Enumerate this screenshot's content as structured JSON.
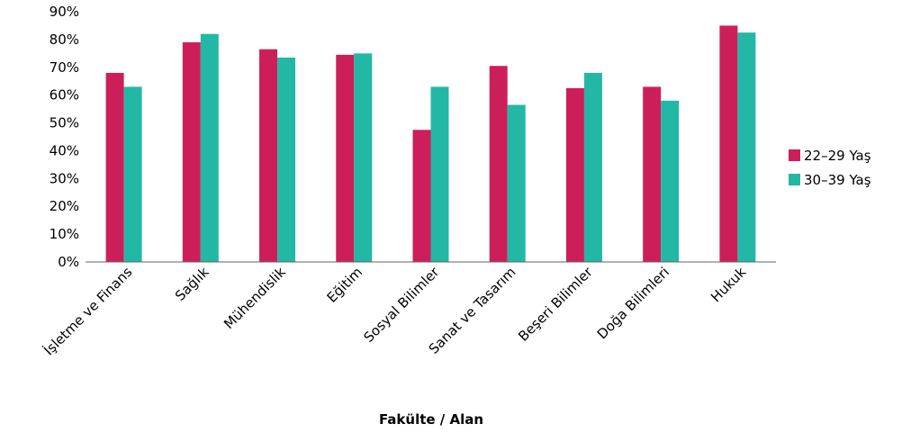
{
  "chart_data": {
    "type": "bar",
    "title": "",
    "xlabel": "Fakülte / Alan",
    "ylabel": "",
    "ylim": [
      0,
      90
    ],
    "yticks": [
      "0%",
      "10%",
      "20%",
      "30%",
      "40%",
      "50%",
      "60%",
      "70%",
      "80%",
      "90%"
    ],
    "grid": false,
    "legend_position": "right",
    "categories": [
      "İşletme ve Finans",
      "Sağlık",
      "Mühendislik",
      "Eğitim",
      "Sosyal Bilimler",
      "Sanat ve Tasarım",
      "Beşeri Bilimler",
      "Doğa Bilimleri",
      "Hukuk"
    ],
    "series": [
      {
        "name": "22–29 Yaş",
        "color": "#cc1f5a",
        "values": [
          68,
          79,
          76.5,
          74.5,
          47.5,
          70.5,
          62.5,
          63,
          85
        ]
      },
      {
        "name": "30–39 Yaş",
        "color": "#22b8a5",
        "values": [
          63,
          82,
          73.5,
          75,
          63,
          56.5,
          68,
          58,
          82.5
        ]
      }
    ]
  }
}
